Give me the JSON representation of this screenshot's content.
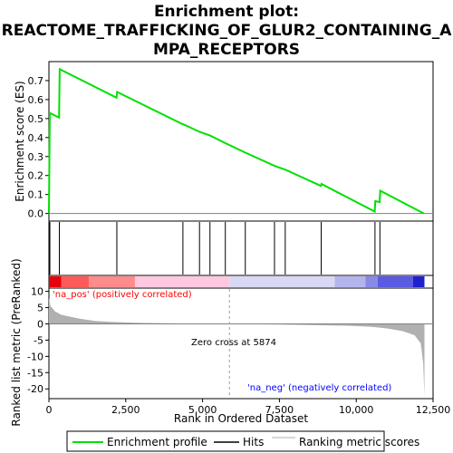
{
  "chart_data": {
    "type": "line",
    "title_lines": [
      "Enrichment plot:",
      "REACTOME_TRAFFICKING_OF_GLUR2_CONTAINING_A",
      "MPA_RECEPTORS"
    ],
    "xlabel": "Rank in Ordered Dataset",
    "es_panel": {
      "ylabel": "Enrichment score (ES)",
      "ylim": [
        -0.04,
        0.8
      ],
      "yticks": [
        0.0,
        0.1,
        0.2,
        0.3,
        0.4,
        0.5,
        0.6,
        0.7
      ],
      "ytick_labels": [
        "0.0",
        "0.1",
        "0.2",
        "0.3",
        "0.4",
        "0.5",
        "0.6",
        "0.7"
      ],
      "series_name": "Enrichment profile",
      "color": "#00e000",
      "points": [
        [
          0,
          0.0
        ],
        [
          30,
          0.53
        ],
        [
          330,
          0.505
        ],
        [
          350,
          0.76
        ],
        [
          2200,
          0.61
        ],
        [
          2220,
          0.64
        ],
        [
          4350,
          0.47
        ],
        [
          4370,
          0.47
        ],
        [
          4900,
          0.43
        ],
        [
          5250,
          0.41
        ],
        [
          5750,
          0.37
        ],
        [
          6400,
          0.32
        ],
        [
          7350,
          0.25
        ],
        [
          7700,
          0.23
        ],
        [
          8850,
          0.145
        ],
        [
          8870,
          0.155
        ],
        [
          10600,
          0.01
        ],
        [
          10620,
          0.065
        ],
        [
          10760,
          0.06
        ],
        [
          10780,
          0.12
        ],
        [
          12200,
          0.0
        ]
      ]
    },
    "hits": [
      30,
      340,
      2210,
      4360,
      4900,
      5240,
      5740,
      6390,
      7340,
      7690,
      8860,
      10610,
      10770
    ],
    "rank_panel": {
      "ylabel": "Ranked list metric (PreRanked)",
      "ylim": [
        -23,
        11
      ],
      "yticks": [
        10,
        5,
        0,
        -5,
        -10,
        -15,
        -20
      ],
      "ytick_labels": [
        "10",
        "5",
        "0",
        "-5",
        "-10",
        "-15",
        "-20"
      ],
      "series_name": "Ranking metric scores",
      "color": "#b0b0b0",
      "points": [
        [
          0,
          8
        ],
        [
          50,
          5.5
        ],
        [
          200,
          3.8
        ],
        [
          400,
          2.8
        ],
        [
          700,
          2.2
        ],
        [
          1000,
          1.6
        ],
        [
          1500,
          0.9
        ],
        [
          2000,
          0.6
        ],
        [
          3000,
          0.3
        ],
        [
          4000,
          0.15
        ],
        [
          5000,
          0.05
        ],
        [
          5874,
          0
        ],
        [
          7000,
          -0.15
        ],
        [
          8000,
          -0.3
        ],
        [
          9000,
          -0.45
        ],
        [
          9800,
          -0.6
        ],
        [
          10500,
          -0.9
        ],
        [
          11000,
          -1.4
        ],
        [
          11500,
          -2.2
        ],
        [
          11900,
          -3.5
        ],
        [
          12100,
          -6
        ],
        [
          12180,
          -12
        ],
        [
          12220,
          -22.5
        ]
      ],
      "zero_cross": 5874,
      "zero_cross_label": "Zero cross at 5874",
      "pos_label": "'na_pos' (positively correlated)",
      "neg_label": "'na_neg' (negatively correlated)",
      "pos_color": "#ff0000",
      "neg_color": "#0000ff"
    },
    "xlim": [
      0,
      12500
    ],
    "xticks": [
      0,
      2500,
      5000,
      7500,
      10000,
      12500
    ],
    "xtick_labels": [
      "0",
      "2,500",
      "5,000",
      "7,500",
      "10,000",
      "12,500"
    ],
    "gradient_bar": {
      "segments": [
        {
          "from": 0,
          "to": 400,
          "color": "#e8000a"
        },
        {
          "from": 400,
          "to": 1300,
          "color": "#ff5a5a"
        },
        {
          "from": 1300,
          "to": 2800,
          "color": "#ff8c8c"
        },
        {
          "from": 2800,
          "to": 5874,
          "color": "#ffc8e0"
        },
        {
          "from": 5874,
          "to": 9300,
          "color": "#d8d8f4"
        },
        {
          "from": 9300,
          "to": 10300,
          "color": "#b4b4ec"
        },
        {
          "from": 10300,
          "to": 10700,
          "color": "#8a8ae6"
        },
        {
          "from": 10700,
          "to": 11850,
          "color": "#5a5ae2"
        },
        {
          "from": 11850,
          "to": 12220,
          "color": "#2020cc"
        }
      ]
    },
    "legend": [
      {
        "label": "Enrichment profile",
        "kind": "line",
        "color": "#00e000"
      },
      {
        "label": "Hits",
        "kind": "line",
        "color": "#000000"
      },
      {
        "label": "Ranking metric scores",
        "kind": "line",
        "color": "#b0b0b0"
      }
    ]
  }
}
